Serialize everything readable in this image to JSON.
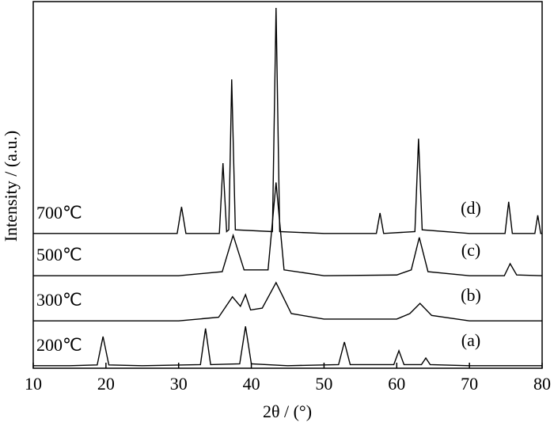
{
  "chart_data": {
    "type": "line",
    "x_label": "2θ / (°)",
    "y_label": "Intensity / (a.u.)",
    "xlim": [
      10,
      80
    ],
    "xticks": [
      10,
      20,
      30,
      40,
      50,
      60,
      70,
      80
    ],
    "ylim": [
      0,
      100
    ],
    "color": "#000000",
    "series": [
      {
        "name": "200℃",
        "label": "(a)",
        "x": [
          10,
          15,
          18.8,
          19.6,
          20.4,
          25,
          33.0,
          33.7,
          34.4,
          38.4,
          39.2,
          40.0,
          45,
          52.0,
          52.8,
          53.6,
          59.6,
          60.3,
          61.0,
          63.4,
          64,
          64.6,
          70,
          80
        ],
        "values": [
          0.7,
          0.7,
          0.9,
          8.7,
          0.9,
          0.7,
          1,
          10.9,
          1,
          1.2,
          11.5,
          1.2,
          0.7,
          1,
          7.2,
          1,
          1,
          4.8,
          1,
          1,
          2.8,
          1,
          0.7,
          0.7
        ]
      },
      {
        "name": "300℃",
        "label": "(b)",
        "x": [
          10,
          20,
          30,
          35.5,
          37.4,
          38.5,
          39.2,
          39.9,
          41.5,
          43.4,
          45.5,
          50,
          60,
          61.8,
          63.2,
          64.8,
          70,
          80
        ],
        "values": [
          13,
          13,
          13,
          14,
          19.6,
          17,
          20.2,
          16,
          16.5,
          23.5,
          15,
          13.5,
          13.5,
          15,
          17.8,
          14.5,
          13,
          13
        ]
      },
      {
        "name": "500℃",
        "label": "(c)",
        "x": [
          10,
          20,
          30,
          36,
          37.5,
          39,
          42.3,
          43.4,
          44.5,
          50,
          60,
          62,
          63.1,
          64.3,
          70,
          74.8,
          75.6,
          76.5,
          80
        ],
        "values": [
          25.4,
          25.4,
          25.4,
          26.5,
          36.5,
          27,
          27,
          51,
          27,
          25.4,
          25.6,
          27,
          35.9,
          26.5,
          25.4,
          25.4,
          28.7,
          25.6,
          25.4
        ]
      },
      {
        "name": "700℃",
        "label": "(d)",
        "x": [
          10,
          20,
          29.8,
          30.4,
          31.0,
          35.6,
          36.1,
          36.6,
          36.9,
          37.3,
          37.8,
          42.9,
          43.4,
          43.9,
          50,
          57.2,
          57.7,
          58.2,
          62.5,
          63.0,
          63.5,
          70,
          74.9,
          75.4,
          75.9,
          79.0,
          79.4,
          79.8,
          80
        ],
        "values": [
          37,
          37,
          37,
          44.3,
          37,
          37,
          56.3,
          37.5,
          38,
          79.3,
          38,
          37.5,
          98.9,
          37.5,
          37,
          37,
          42.6,
          37,
          37.5,
          63,
          38,
          37,
          37,
          45.7,
          37,
          37,
          42,
          37,
          37
        ]
      }
    ]
  }
}
